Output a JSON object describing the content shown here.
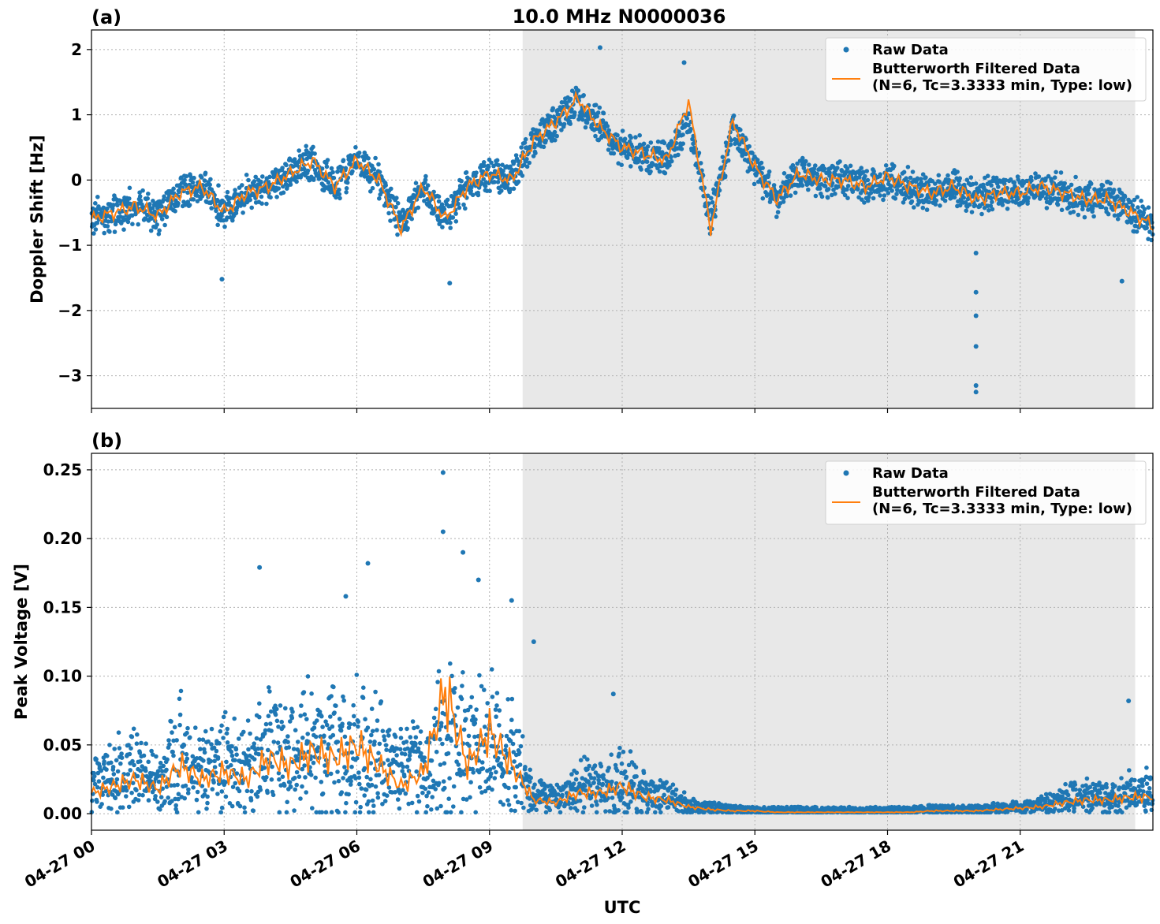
{
  "figure": {
    "title": "10.0 MHz N0000036",
    "xlabel": "UTC"
  },
  "chart_data": [
    {
      "type": "scatter",
      "panel_label": "(a)",
      "ylabel": "Doppler Shift [Hz]",
      "xlim_hours": [
        0,
        24
      ],
      "ylim": [
        -3.5,
        2.3
      ],
      "yticks": [
        2,
        1,
        0,
        -1,
        -2,
        -3
      ],
      "ytick_labels": [
        "2",
        "1",
        "0",
        "−1",
        "−2",
        "−3"
      ],
      "x_tick_labels": [
        "04-27 00",
        "04-27 03",
        "04-27 06",
        "04-27 09",
        "04-27 12",
        "04-27 15",
        "04-27 18",
        "04-27 21"
      ],
      "shaded_region_hours": [
        9.75,
        23.6
      ],
      "grid": true,
      "legend_position": "top-right",
      "series": [
        {
          "name": "Raw Data",
          "kind": "scatter",
          "color": "#1f77b4",
          "x_hours": [
            0,
            0.5,
            1,
            1.5,
            2,
            2.5,
            3,
            3.5,
            4,
            4.5,
            5,
            5.5,
            6,
            6.5,
            7,
            7.5,
            8,
            8.5,
            9,
            9.5,
            10,
            10.5,
            11,
            11.5,
            12,
            12.5,
            13,
            13.5,
            14,
            14.5,
            15,
            15.5,
            16,
            16.5,
            17,
            17.5,
            18,
            18.5,
            19,
            19.5,
            20,
            20.5,
            21,
            21.5,
            22,
            22.5,
            23,
            23.5,
            24
          ],
          "y": [
            -0.6,
            -0.5,
            -0.4,
            -0.55,
            -0.2,
            -0.1,
            -0.5,
            -0.2,
            -0.1,
            0.1,
            0.3,
            -0.1,
            0.3,
            0.0,
            -0.7,
            -0.1,
            -0.6,
            -0.1,
            0.1,
            0.0,
            0.6,
            0.9,
            1.2,
            0.8,
            0.5,
            0.4,
            0.3,
            0.9,
            -0.6,
            0.8,
            0.2,
            -0.3,
            0.1,
            0.0,
            0.0,
            -0.1,
            0.0,
            -0.1,
            -0.2,
            -0.1,
            -0.3,
            -0.2,
            -0.2,
            -0.1,
            -0.2,
            -0.3,
            -0.3,
            -0.5,
            -0.7
          ],
          "outliers": [
            {
              "x_hour": 11.5,
              "y": 2.03
            },
            {
              "x_hour": 13.4,
              "y": 1.8
            },
            {
              "x_hour": 2.95,
              "y": -1.52
            },
            {
              "x_hour": 8.1,
              "y": -1.58
            },
            {
              "x_hour": 20.0,
              "y": -1.12
            },
            {
              "x_hour": 20.0,
              "y": -1.72
            },
            {
              "x_hour": 20.0,
              "y": -2.08
            },
            {
              "x_hour": 20.0,
              "y": -2.55
            },
            {
              "x_hour": 20.0,
              "y": -3.15
            },
            {
              "x_hour": 20.0,
              "y": -3.25
            },
            {
              "x_hour": 23.3,
              "y": -1.55
            }
          ]
        },
        {
          "name": "Butterworth Filtered Data\n(N=6, Tc=3.3333 min, Type: low)",
          "kind": "line",
          "color": "#ff7f0e",
          "x_hours": [
            0,
            0.5,
            1,
            1.5,
            2,
            2.5,
            3,
            3.5,
            4,
            4.5,
            5,
            5.5,
            6,
            6.5,
            7,
            7.5,
            8,
            8.5,
            9,
            9.5,
            10,
            10.5,
            11,
            11.5,
            12,
            12.5,
            13,
            13.5,
            14,
            14.5,
            15,
            15.5,
            16,
            16.5,
            17,
            17.5,
            18,
            18.5,
            19,
            19.5,
            20,
            20.5,
            21,
            21.5,
            22,
            22.5,
            23,
            23.5,
            24
          ],
          "y": [
            -0.6,
            -0.5,
            -0.4,
            -0.55,
            -0.2,
            -0.1,
            -0.5,
            -0.2,
            -0.1,
            0.1,
            0.3,
            -0.1,
            0.3,
            0.0,
            -0.75,
            -0.1,
            -0.6,
            -0.1,
            0.1,
            0.0,
            0.6,
            0.9,
            1.25,
            0.8,
            0.5,
            0.4,
            0.3,
            1.2,
            -0.75,
            0.9,
            0.2,
            -0.3,
            0.1,
            0.0,
            0.0,
            -0.1,
            0.05,
            -0.1,
            -0.2,
            -0.1,
            -0.3,
            -0.2,
            -0.2,
            -0.1,
            -0.2,
            -0.3,
            -0.3,
            -0.5,
            -0.7
          ]
        }
      ]
    },
    {
      "type": "scatter",
      "panel_label": "(b)",
      "ylabel": "Peak Voltage [V]",
      "xlim_hours": [
        0,
        24
      ],
      "ylim": [
        -0.012,
        0.262
      ],
      "yticks": [
        0.25,
        0.2,
        0.15,
        0.1,
        0.05,
        0.0
      ],
      "ytick_labels": [
        "0.25",
        "0.20",
        "0.15",
        "0.10",
        "0.05",
        "0.00"
      ],
      "x_tick_labels": [
        "04-27 00",
        "04-27 03",
        "04-27 06",
        "04-27 09",
        "04-27 12",
        "04-27 15",
        "04-27 18",
        "04-27 21"
      ],
      "shaded_region_hours": [
        9.75,
        23.6
      ],
      "grid": true,
      "legend_position": "top-right",
      "series": [
        {
          "name": "Raw Data",
          "kind": "scatter",
          "color": "#1f77b4",
          "x_hours": [
            0,
            0.5,
            1,
            1.5,
            2,
            2.5,
            3,
            3.5,
            4,
            4.5,
            5,
            5.5,
            6,
            6.5,
            7,
            7.5,
            8,
            8.5,
            9,
            9.5,
            10,
            10.5,
            11,
            11.5,
            12,
            12.5,
            13,
            13.5,
            14,
            14.5,
            15,
            15.5,
            16,
            16.5,
            17,
            17.5,
            18,
            18.5,
            19,
            19.5,
            20,
            20.5,
            21,
            21.5,
            22,
            22.5,
            23,
            23.5,
            24
          ],
          "y": [
            0.02,
            0.025,
            0.03,
            0.02,
            0.04,
            0.03,
            0.035,
            0.03,
            0.045,
            0.04,
            0.05,
            0.045,
            0.05,
            0.04,
            0.03,
            0.035,
            0.055,
            0.045,
            0.05,
            0.04,
            0.012,
            0.01,
            0.02,
            0.02,
            0.025,
            0.015,
            0.012,
            0.006,
            0.004,
            0.003,
            0.002,
            0.002,
            0.002,
            0.002,
            0.002,
            0.002,
            0.002,
            0.002,
            0.003,
            0.003,
            0.003,
            0.004,
            0.005,
            0.006,
            0.01,
            0.012,
            0.012,
            0.015,
            0.015
          ],
          "outliers": [
            {
              "x_hour": 7.95,
              "y": 0.248
            },
            {
              "x_hour": 7.95,
              "y": 0.205
            },
            {
              "x_hour": 8.4,
              "y": 0.19
            },
            {
              "x_hour": 6.25,
              "y": 0.182
            },
            {
              "x_hour": 3.8,
              "y": 0.179
            },
            {
              "x_hour": 8.75,
              "y": 0.17
            },
            {
              "x_hour": 5.75,
              "y": 0.158
            },
            {
              "x_hour": 9.5,
              "y": 0.155
            },
            {
              "x_hour": 10.0,
              "y": 0.125
            },
            {
              "x_hour": 11.8,
              "y": 0.087
            },
            {
              "x_hour": 23.45,
              "y": 0.082
            }
          ]
        },
        {
          "name": "Butterworth Filtered Data\n(N=6, Tc=3.3333 min, Type: low)",
          "kind": "line",
          "color": "#ff7f0e",
          "x_hours": [
            0,
            0.5,
            1,
            1.5,
            2,
            2.5,
            3,
            3.5,
            4,
            4.5,
            5,
            5.5,
            6,
            6.5,
            7,
            7.5,
            8,
            8.5,
            9,
            9.5,
            10,
            10.5,
            11,
            11.5,
            12,
            12.5,
            13,
            13.5,
            14,
            14.5,
            15,
            15.5,
            16,
            16.5,
            17,
            17.5,
            18,
            18.5,
            19,
            19.5,
            20,
            20.5,
            21,
            21.5,
            22,
            22.5,
            23,
            23.5,
            24
          ],
          "y": [
            0.015,
            0.02,
            0.025,
            0.018,
            0.035,
            0.025,
            0.03,
            0.025,
            0.04,
            0.035,
            0.045,
            0.04,
            0.05,
            0.035,
            0.02,
            0.03,
            0.09,
            0.035,
            0.06,
            0.035,
            0.01,
            0.008,
            0.015,
            0.015,
            0.02,
            0.012,
            0.01,
            0.005,
            0.003,
            0.002,
            0.002,
            0.001,
            0.001,
            0.001,
            0.001,
            0.001,
            0.001,
            0.001,
            0.002,
            0.002,
            0.002,
            0.003,
            0.004,
            0.005,
            0.008,
            0.01,
            0.01,
            0.012,
            0.012
          ]
        }
      ]
    }
  ]
}
